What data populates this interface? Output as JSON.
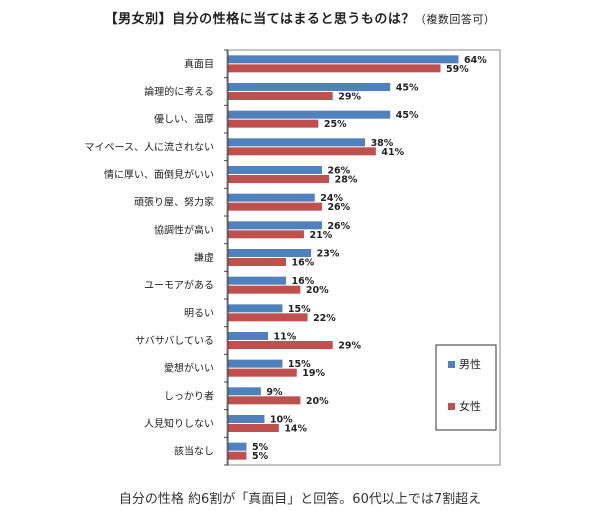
{
  "title": {
    "main": "【男女別】自分の性格に当てはまると思うものは？",
    "note": "（複数回答可）"
  },
  "caption": "自分の性格 約6割が「真面目」と回答。60代以上では7割超え",
  "chart_data": {
    "type": "bar",
    "orientation": "horizontal",
    "categories": [
      "真面目",
      "論理的に考える",
      "優しい、温厚",
      "マイペース、人に流されない",
      "情に厚い、面倒見がいい",
      "頑張り屋、努力家",
      "協調性が高い",
      "謙虚",
      "ユーモアがある",
      "明るい",
      "サバサバしている",
      "愛想がいい",
      "しっかり者",
      "人見知りしない",
      "該当なし"
    ],
    "series": [
      {
        "name": "男性",
        "color": "#4f81bd",
        "values": [
          64,
          45,
          45,
          38,
          26,
          24,
          26,
          23,
          16,
          15,
          11,
          15,
          9,
          10,
          5
        ]
      },
      {
        "name": "女性",
        "color": "#c0504d",
        "values": [
          59,
          29,
          25,
          41,
          28,
          26,
          21,
          16,
          20,
          22,
          29,
          19,
          20,
          14,
          5
        ]
      }
    ],
    "value_suffix": "%",
    "xlim": [
      0,
      70
    ],
    "grid": false,
    "legend_position": "right"
  }
}
